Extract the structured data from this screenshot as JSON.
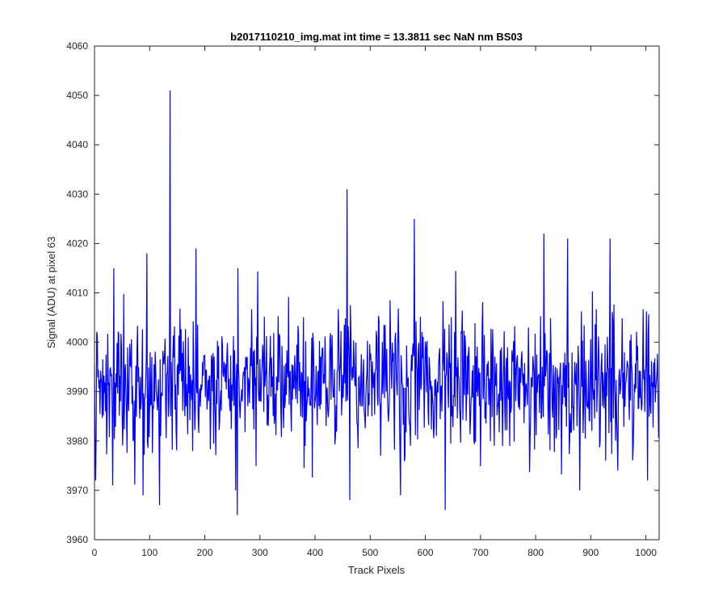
{
  "chart_data": {
    "type": "line",
    "title": "b2017110210_img.mat int time = 13.3811 sec  NaN nm BS03",
    "xlabel": "Track Pixels",
    "ylabel": "Signal (ADU) at pixel 63",
    "xlim": [
      0,
      1024
    ],
    "ylim": [
      3960,
      4060
    ],
    "xticks": [
      0,
      100,
      200,
      300,
      400,
      500,
      600,
      700,
      800,
      900,
      1000
    ],
    "yticks": [
      3960,
      3970,
      3980,
      3990,
      4000,
      4010,
      4020,
      4030,
      4040,
      4050,
      4060
    ],
    "grid": false,
    "legend": "none",
    "line_color": "#0000ff",
    "baseline_mean": 3992,
    "baseline_std": 7,
    "series": [
      {
        "num_points": 1024,
        "notable_points": [
          {
            "x": 2,
            "y": 3972
          },
          {
            "x": 33,
            "y": 3971
          },
          {
            "x": 35,
            "y": 4015
          },
          {
            "x": 88,
            "y": 3969
          },
          {
            "x": 95,
            "y": 4018
          },
          {
            "x": 118,
            "y": 3967
          },
          {
            "x": 137,
            "y": 4051
          },
          {
            "x": 184,
            "y": 4019
          },
          {
            "x": 256,
            "y": 3970
          },
          {
            "x": 259,
            "y": 3965
          },
          {
            "x": 260,
            "y": 4015
          },
          {
            "x": 458,
            "y": 4031
          },
          {
            "x": 463,
            "y": 3968
          },
          {
            "x": 555,
            "y": 3969
          },
          {
            "x": 580,
            "y": 4025
          },
          {
            "x": 636,
            "y": 3966
          },
          {
            "x": 815,
            "y": 4022
          },
          {
            "x": 858,
            "y": 4021
          },
          {
            "x": 880,
            "y": 3970
          },
          {
            "x": 935,
            "y": 4021
          },
          {
            "x": 1003,
            "y": 3972
          }
        ]
      }
    ]
  }
}
